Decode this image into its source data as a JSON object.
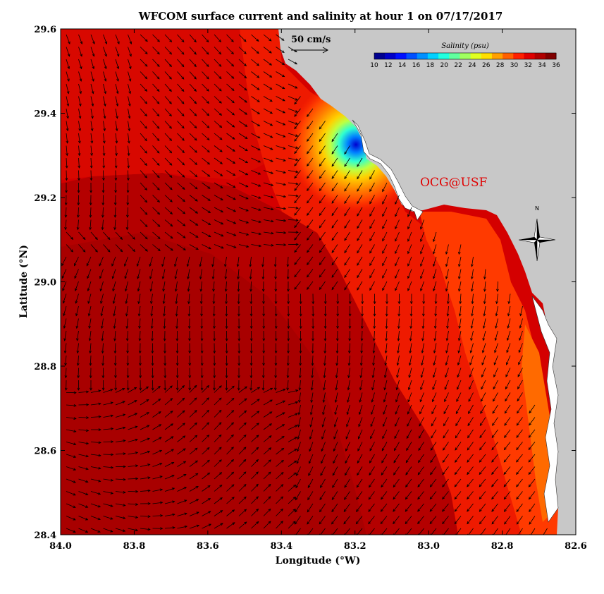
{
  "title": "WFCOM surface current and salinity at hour 1 on 07/17/2017",
  "credit": "OCG@USF",
  "reference_vector": {
    "label": "50 cm/s",
    "speed_cm_s": 50
  },
  "north_arrow": {
    "label": "N"
  },
  "colorbar": {
    "title": "Salinity (psu)",
    "ticks": [
      "10",
      "12",
      "14",
      "16",
      "18",
      "20",
      "22",
      "24",
      "26",
      "28",
      "30",
      "32",
      "34",
      "36"
    ],
    "min": 10,
    "max": 36,
    "colors": [
      "#00008f",
      "#0000c8",
      "#0010ff",
      "#0050ff",
      "#0090ff",
      "#00d0ff",
      "#20ffdf",
      "#60ff9f",
      "#a0ff5f",
      "#e0ff20",
      "#ffdf00",
      "#ffa000",
      "#ff6000",
      "#ff2000",
      "#df0000",
      "#b00000",
      "#800000"
    ]
  },
  "x_axis": {
    "label": "Longitude (°W)",
    "ticks": [
      "84.0",
      "83.8",
      "83.6",
      "83.4",
      "83.2",
      "83.0",
      "82.8",
      "82.6"
    ],
    "min": 84.0,
    "max": 82.6
  },
  "y_axis": {
    "label": "Latitude (°N)",
    "ticks": [
      "29.6",
      "29.4",
      "29.2",
      "29.0",
      "28.8",
      "28.6",
      "28.4"
    ],
    "min": 28.4,
    "max": 29.6
  },
  "colors": {
    "land": "#c8c8c8",
    "sea_offshore": "#b80000",
    "sea_mid": "#d40000",
    "sea_nearshore": "#f22000",
    "coastal_band": "#ff4a00",
    "arrows": "#000000"
  }
}
